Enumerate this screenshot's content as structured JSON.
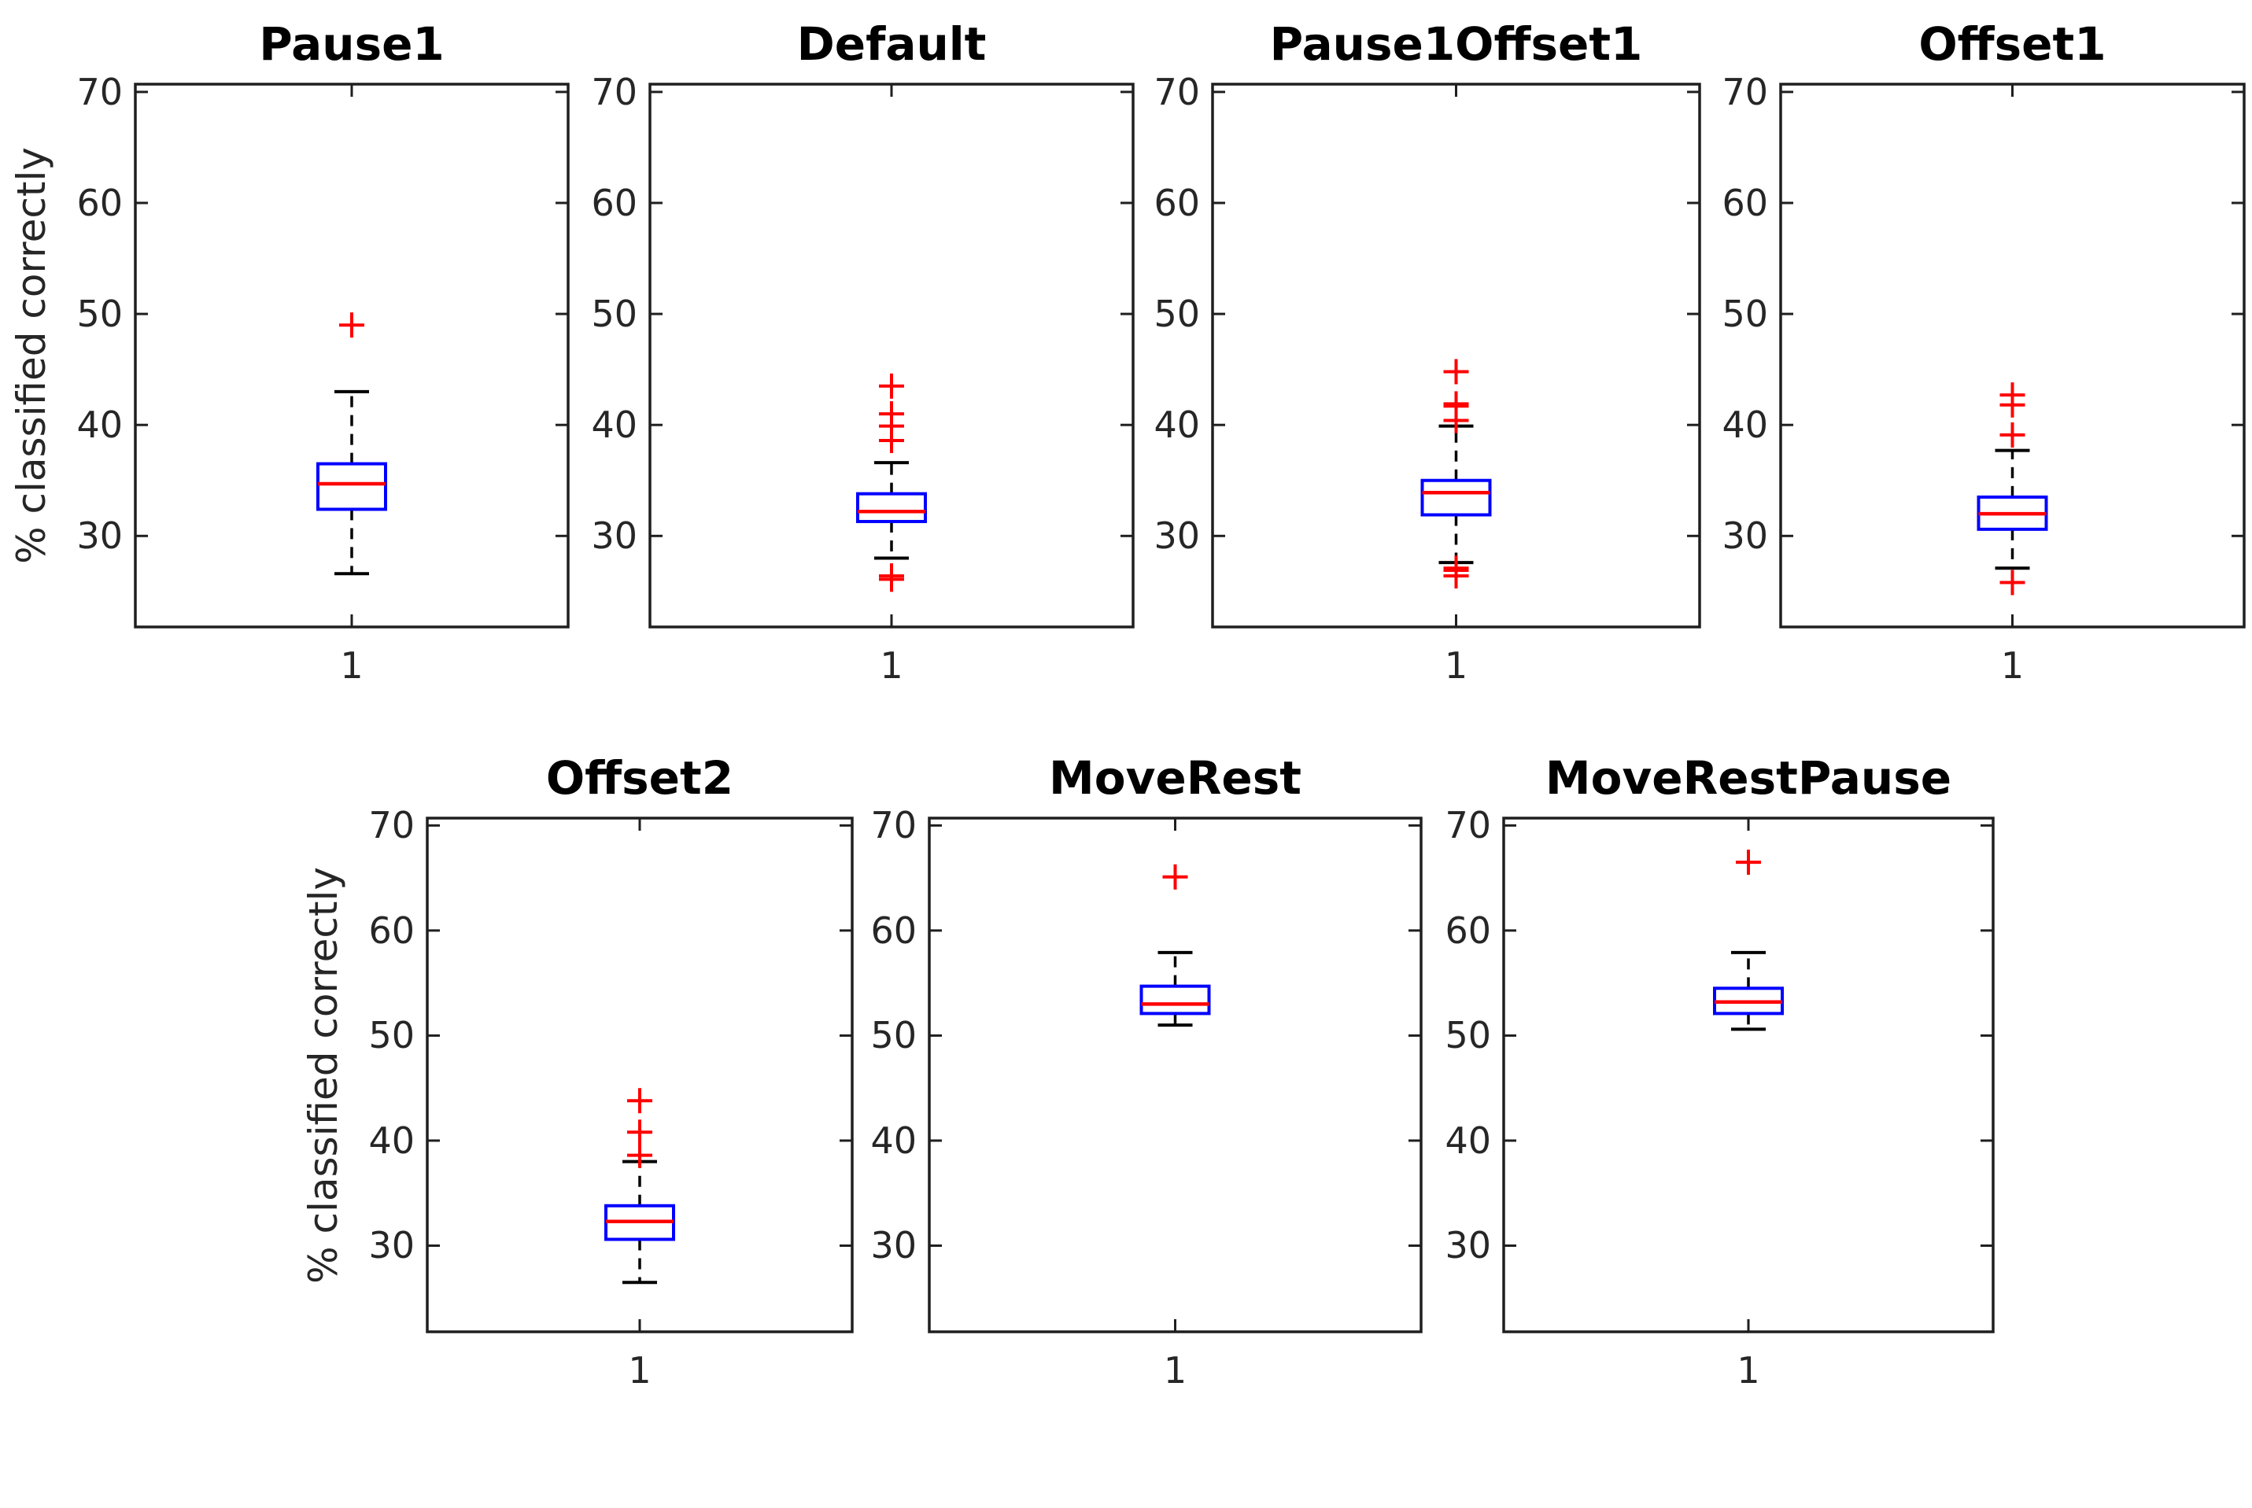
{
  "figure": {
    "ylabel": "% classified correctly",
    "xtick_label": "1",
    "ytick_labels": [
      "70",
      "60",
      "50",
      "40",
      "30"
    ],
    "colors": {
      "box": "#0000ff",
      "median": "#ff0000",
      "outlier": "#ff0000",
      "whisker": "#000000",
      "axis": "#1f1f1f",
      "tick_text": "#262626",
      "title_text": "#000000",
      "background": "#ffffff"
    }
  },
  "chart_data": {
    "type": "boxplot",
    "ylabel": "% classified correctly",
    "ylim": [
      21.8,
      70.7
    ],
    "yticks": [
      30,
      40,
      50,
      60,
      70
    ],
    "x_categories": [
      "1"
    ],
    "grid": false,
    "legend": "none",
    "layout_hint": "2 rows: 4 subplots on top row, 3 subplots on bottom row; y-axis label only on first subplot of each row",
    "subplots": [
      {
        "title": "Pause1",
        "row": 1,
        "median": 34.7,
        "q1": 32.4,
        "q3": 36.5,
        "whisker_low": 26.6,
        "whisker_high": 43.0,
        "outliers": [
          49.0
        ]
      },
      {
        "title": "Default",
        "row": 1,
        "median": 32.2,
        "q1": 31.3,
        "q3": 33.8,
        "whisker_low": 28.0,
        "whisker_high": 36.6,
        "outliers": [
          43.5,
          41.0,
          39.9,
          38.6,
          26.4,
          26.1
        ]
      },
      {
        "title": "Pause1Offset1",
        "row": 1,
        "median": 33.9,
        "q1": 31.9,
        "q3": 35.0,
        "whisker_low": 27.6,
        "whisker_high": 39.9,
        "outliers": [
          44.8,
          41.9,
          41.7,
          40.4,
          27.1,
          26.9,
          26.4
        ]
      },
      {
        "title": "Offset1",
        "row": 1,
        "median": 32.0,
        "q1": 30.6,
        "q3": 33.5,
        "whisker_low": 27.1,
        "whisker_high": 37.7,
        "outliers": [
          42.7,
          41.8,
          39.1,
          25.8
        ]
      },
      {
        "title": "Offset2",
        "row": 2,
        "median": 32.3,
        "q1": 30.6,
        "q3": 33.8,
        "whisker_low": 26.5,
        "whisker_high": 38.0,
        "outliers": [
          43.8,
          40.8,
          38.6
        ]
      },
      {
        "title": "MoveRest",
        "row": 2,
        "median": 53.0,
        "q1": 52.1,
        "q3": 54.7,
        "whisker_low": 51.0,
        "whisker_high": 57.9,
        "outliers": [
          65.1
        ]
      },
      {
        "title": "MoveRestPause",
        "row": 2,
        "median": 53.2,
        "q1": 52.1,
        "q3": 54.5,
        "whisker_low": 50.6,
        "whisker_high": 57.9,
        "outliers": [
          66.5
        ]
      }
    ]
  }
}
